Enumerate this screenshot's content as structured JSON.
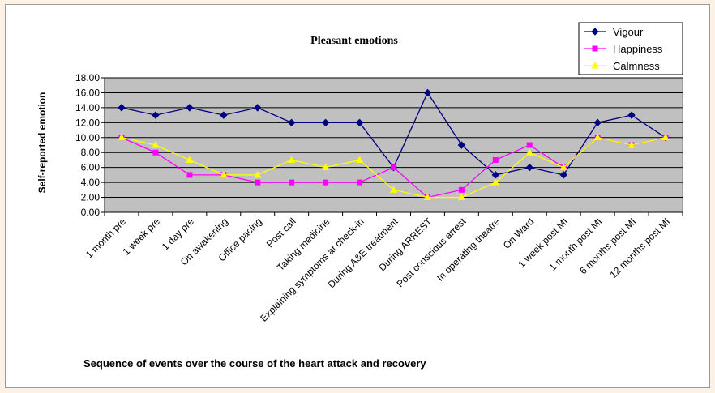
{
  "chart_data": {
    "type": "line",
    "title": "Pleasant emotions",
    "xlabel": "Sequence of events over the course of the heart attack and recovery",
    "ylabel": "Self-reported emotion",
    "ylim": [
      0,
      18
    ],
    "yticks": [
      "0.00",
      "2.00",
      "4.00",
      "6.00",
      "8.00",
      "10.00",
      "12.00",
      "14.00",
      "16.00",
      "18.00"
    ],
    "grid": true,
    "legend_position": "top-right",
    "plot_background": "#c0c0c0",
    "categories": [
      "1 month pre",
      "1 week pre",
      "1 day pre",
      "On awakening",
      "Office pacing",
      "Post call",
      "Taking medicine",
      "Explaining symptoms at check-in",
      "During A&E treatment",
      "During ARREST",
      "Post conscious arrest",
      "In operating theatre",
      "On Ward",
      "1 week post MI",
      "1 month post MI",
      "6 months post MI",
      "12 months post MI"
    ],
    "series": [
      {
        "name": "Vigour",
        "color": "#000080",
        "marker": "diamond",
        "values": [
          14,
          13,
          14,
          13,
          14,
          12,
          12,
          12,
          6,
          16,
          9,
          5,
          6,
          5,
          12,
          13,
          10
        ]
      },
      {
        "name": "Happiness",
        "color": "#ff00ff",
        "marker": "square",
        "values": [
          10,
          8,
          5,
          5,
          4,
          4,
          4,
          4,
          6,
          2,
          3,
          7,
          9,
          6,
          10,
          9,
          10
        ]
      },
      {
        "name": "Calmness",
        "color": "#ffff00",
        "marker": "triangle",
        "values": [
          10,
          9,
          7,
          5,
          5,
          7,
          6,
          7,
          3,
          2,
          2,
          4,
          8,
          6,
          10,
          9,
          10
        ]
      }
    ]
  }
}
